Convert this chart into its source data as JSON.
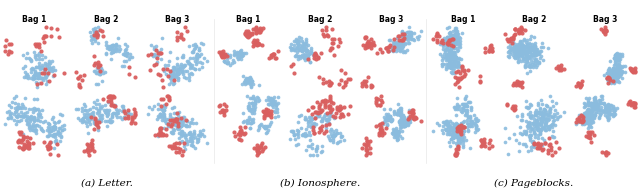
{
  "captions": [
    "(a) Letter.",
    "(b) Ionosphere.",
    "(c) Pageblocks."
  ],
  "bag_labels": [
    "Bag 1",
    "Bag 2",
    "Bag 3"
  ],
  "blue_color": "#8BBCDE",
  "red_color": "#D95F5F",
  "bg_color": "#FFFFFF",
  "n_groups": 3,
  "n_rows": 2,
  "n_bags": 3,
  "bag_label_fontsize": 5.5,
  "caption_fontsize": 7.5
}
